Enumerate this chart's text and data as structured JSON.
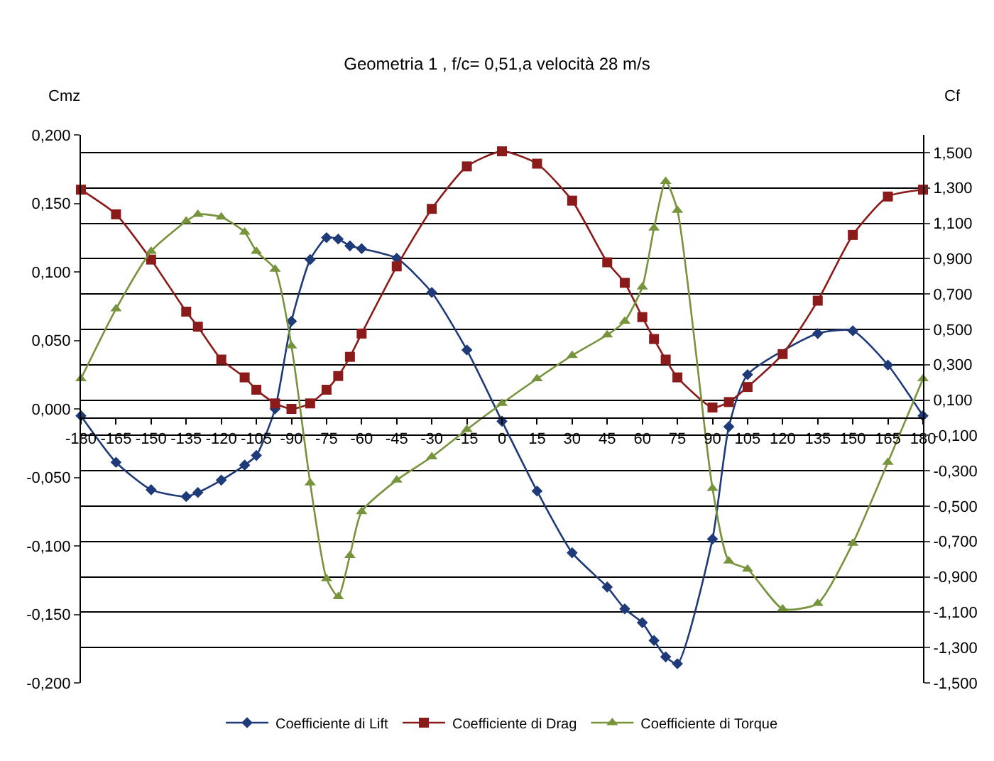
{
  "chart_data": {
    "type": "line",
    "title": "Geometria 1 , f/c= 0,51,a velocità 28 m/s",
    "ylabel": "Cmz",
    "y2label": "Cf",
    "xlim": [
      -180,
      180
    ],
    "xticks": [
      -180,
      -165,
      -150,
      -135,
      -120,
      -105,
      -90,
      -75,
      -60,
      -45,
      -30,
      -15,
      0,
      15,
      30,
      45,
      60,
      75,
      90,
      105,
      120,
      135,
      150,
      165,
      180
    ],
    "ylim": [
      -0.2,
      0.2
    ],
    "yticks": [
      {
        "value": -0.2,
        "label": "-0,200"
      },
      {
        "value": -0.15,
        "label": "-0,150"
      },
      {
        "value": -0.1,
        "label": "-0,100"
      },
      {
        "value": -0.05,
        "label": "-0,050"
      },
      {
        "value": 0,
        "label": "0,000"
      },
      {
        "value": 0.05,
        "label": "0,050"
      },
      {
        "value": 0.1,
        "label": "0,100"
      },
      {
        "value": 0.15,
        "label": "0,150"
      },
      {
        "value": 0.2,
        "label": "0,200"
      }
    ],
    "y2lim": [
      -1.5,
      1.6
    ],
    "y2ticks": [
      {
        "value": -1.5,
        "label": "-1,500"
      },
      {
        "value": -1.3,
        "label": "-1,300"
      },
      {
        "value": -1.1,
        "label": "-1,100"
      },
      {
        "value": -0.9,
        "label": "-0,900"
      },
      {
        "value": -0.7,
        "label": "-0,700"
      },
      {
        "value": -0.5,
        "label": "-0,500"
      },
      {
        "value": -0.3,
        "label": "-0,300"
      },
      {
        "value": -0.1,
        "label": "-0,100"
      },
      {
        "value": 0.1,
        "label": "0,100"
      },
      {
        "value": 0.3,
        "label": "0,300"
      },
      {
        "value": 0.5,
        "label": "0,500"
      },
      {
        "value": 0.7,
        "label": "0,700"
      },
      {
        "value": 0.9,
        "label": "0,900"
      },
      {
        "value": 1.1,
        "label": "1,100"
      },
      {
        "value": 1.3,
        "label": "1,300"
      },
      {
        "value": 1.5,
        "label": "1,500"
      }
    ],
    "grid": "y2",
    "legend": "bottom",
    "line_style": "solid",
    "series": [
      {
        "name": "Coefficiente di Lift",
        "color": "#1f3a78",
        "marker": "diamond",
        "x": [
          -180,
          -165,
          -150,
          -135,
          -130,
          -120,
          -110,
          -105,
          -97,
          -90,
          -82,
          -75,
          -70,
          -65,
          -60,
          -45,
          -30,
          -15,
          0,
          15,
          30,
          45,
          52.5,
          60,
          65,
          70,
          75,
          90,
          97,
          105,
          135,
          150,
          165,
          180
        ],
        "values": [
          -0.005,
          -0.039,
          -0.059,
          -0.064,
          -0.061,
          -0.052,
          -0.041,
          -0.034,
          0.0,
          0.064,
          0.109,
          0.125,
          0.124,
          0.119,
          0.117,
          0.11,
          0.085,
          0.043,
          -0.009,
          -0.06,
          -0.105,
          -0.13,
          -0.146,
          -0.156,
          -0.169,
          -0.181,
          -0.186,
          -0.095,
          -0.013,
          0.025,
          0.055,
          0.057,
          0.032,
          -0.005
        ]
      },
      {
        "name": "Coefficiente di Drag",
        "color": "#8b1a1a",
        "marker": "square",
        "x": [
          -180,
          -165,
          -150,
          -135,
          -130,
          -120,
          -110,
          -105,
          -97,
          -90,
          -82,
          -75,
          -70,
          -65,
          -60,
          -45,
          -30,
          -15,
          0,
          15,
          30,
          45,
          52.5,
          60,
          65,
          70,
          75,
          90,
          97,
          105,
          120,
          135,
          150,
          165,
          180
        ],
        "values": [
          0.16,
          0.142,
          0.109,
          0.071,
          0.06,
          0.036,
          0.023,
          0.014,
          0.004,
          0.0,
          0.004,
          0.014,
          0.024,
          0.038,
          0.055,
          0.104,
          0.146,
          0.177,
          0.188,
          0.179,
          0.152,
          0.107,
          0.092,
          0.067,
          0.051,
          0.036,
          0.023,
          0.001,
          0.005,
          0.016,
          0.04,
          0.079,
          0.127,
          0.155,
          0.16
        ]
      },
      {
        "name": "Coefficiente di Torque",
        "color": "#77933c",
        "marker": "triangle",
        "x": [
          -180,
          -165,
          -150,
          -135,
          -130,
          -120,
          -110,
          -105,
          -97,
          -90,
          -82,
          -75,
          -70,
          -65,
          -60,
          -45,
          -30,
          -15,
          0,
          15,
          30,
          45,
          52.5,
          60,
          65,
          70,
          75,
          90,
          97,
          105,
          120,
          135,
          150,
          165,
          180
        ],
        "values": [
          0.022,
          0.073,
          0.115,
          0.137,
          0.142,
          0.14,
          0.129,
          0.115,
          0.102,
          0.046,
          -0.054,
          -0.124,
          -0.137,
          -0.107,
          -0.075,
          -0.052,
          -0.035,
          -0.015,
          0.004,
          0.022,
          0.039,
          0.054,
          0.064,
          0.089,
          0.132,
          0.166,
          0.145,
          -0.058,
          -0.111,
          -0.117,
          -0.146,
          -0.142,
          -0.098,
          -0.039,
          0.022
        ]
      }
    ]
  }
}
